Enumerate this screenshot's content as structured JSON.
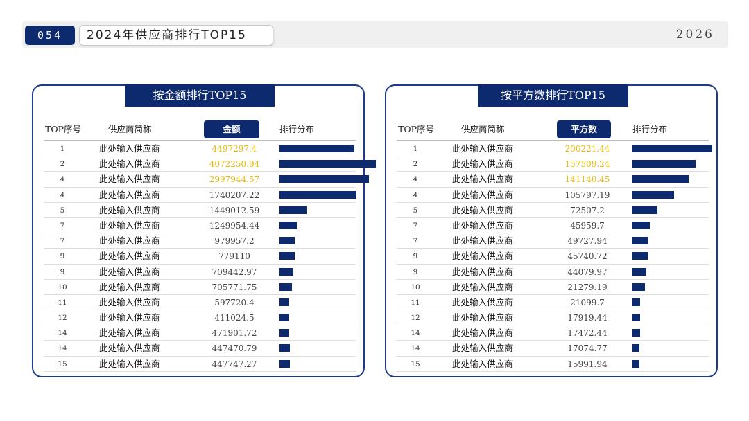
{
  "header": {
    "page_number": "054",
    "title": "2024年供应商排行TOP15",
    "year": "2026"
  },
  "colors": {
    "navy": "#0e2a6e",
    "highlight": "#e8b800",
    "panel_border": "#1b3a8c"
  },
  "left": {
    "title": "按金额排行TOP15",
    "headers": {
      "rank": "TOP序号",
      "name": "供应商简称",
      "value": "金额",
      "dist": "排行分布"
    }
  },
  "right": {
    "title": "按平方数排行TOP15",
    "headers": {
      "rank": "TOP序号",
      "name": "供应商简称",
      "value": "平方数",
      "dist": "排行分布"
    }
  },
  "chart_data": [
    {
      "type": "bar",
      "title": "按金额排行TOP15",
      "ranks": [
        "1",
        "2",
        "4",
        "4",
        "5",
        "7",
        "7",
        "9",
        "9",
        "10",
        "11",
        "12",
        "14",
        "14",
        "15"
      ],
      "categories": [
        "此处输入供应商",
        "此处输入供应商",
        "此处输入供应商",
        "此处输入供应商",
        "此处输入供应商",
        "此处输入供应商",
        "此处输入供应商",
        "此处输入供应商",
        "此处输入供应商",
        "此处输入供应商",
        "此处输入供应商",
        "此处输入供应商",
        "此处输入供应商",
        "此处输入供应商",
        "此处输入供应商"
      ],
      "values": [
        4497297.4,
        4072250.94,
        2997944.57,
        1740207.22,
        1449012.59,
        1249954.44,
        979957.2,
        779110,
        709442.97,
        705771.75,
        597720.4,
        411024.5,
        471901.72,
        447470.79,
        447747.27
      ],
      "labels": [
        "4497297.4",
        "4072250.94",
        "2997944.57",
        "1740207.22",
        "1449012.59",
        "1249954.44",
        "979957.2",
        "779110",
        "709442.97",
        "705771.75",
        "597720.4",
        "411024.5",
        "471901.72",
        "447470.79",
        "447747.27"
      ],
      "bar_fraction": [
        0.77,
        0.99,
        0.92,
        0.79,
        0.28,
        0.18,
        0.16,
        0.16,
        0.14,
        0.13,
        0.09,
        0.09,
        0.09,
        0.11,
        0.11
      ],
      "highlight_top": 3
    },
    {
      "type": "bar",
      "title": "按平方数排行TOP15",
      "ranks": [
        "1",
        "2",
        "4",
        "4",
        "5",
        "7",
        "7",
        "9",
        "9",
        "10",
        "11",
        "12",
        "14",
        "14",
        "15"
      ],
      "categories": [
        "此处输入供应商",
        "此处输入供应商",
        "此处输入供应商",
        "此处输入供应商",
        "此处输入供应商",
        "此处输入供应商",
        "此处输入供应商",
        "此处输入供应商",
        "此处输入供应商",
        "此处输入供应商",
        "此处输入供应商",
        "此处输入供应商",
        "此处输入供应商",
        "此处输入供应商",
        "此处输入供应商"
      ],
      "values": [
        200221.44,
        157509.24,
        141140.45,
        105797.19,
        72507.2,
        45959.7,
        49727.94,
        45740.72,
        44079.97,
        21279.19,
        21099.7,
        17919.44,
        17472.44,
        17074.77,
        15991.94
      ],
      "labels": [
        "200221.44",
        "157509.24",
        "141140.45",
        "105797.19",
        "72507.2",
        "45959.7",
        "49727.94",
        "45740.72",
        "44079.97",
        "21279.19",
        "21099.7",
        "17919.44",
        "17472.44",
        "17074.77",
        "15991.94"
      ],
      "bar_fraction": [
        0.82,
        0.65,
        0.58,
        0.43,
        0.26,
        0.18,
        0.16,
        0.16,
        0.14,
        0.13,
        0.08,
        0.08,
        0.08,
        0.07,
        0.07
      ],
      "highlight_top": 3
    }
  ]
}
